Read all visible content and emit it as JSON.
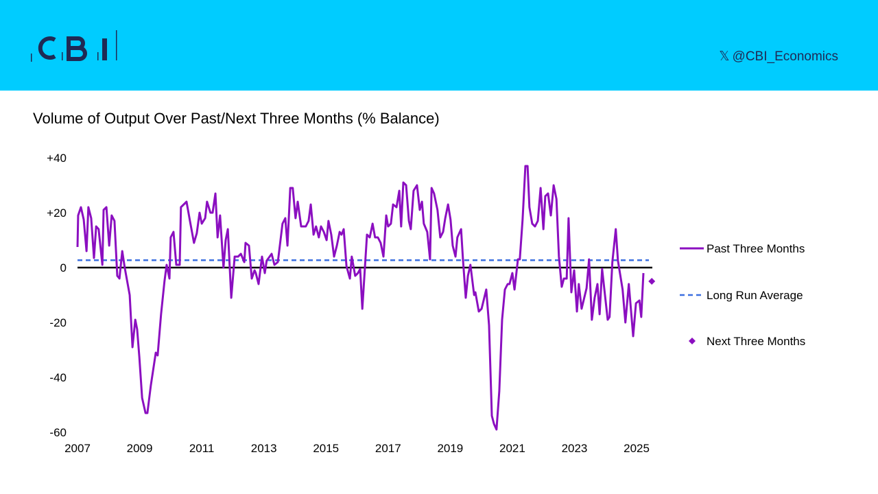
{
  "header": {
    "logo_text": "CBI",
    "handle": "@CBI_Economics",
    "handle_icon": "x-logo-icon",
    "background": "#00CCFF"
  },
  "chart_data": {
    "type": "line",
    "title": "Volume of Output Over Past/Next Three Months (% Balance)",
    "xlabel": "",
    "ylabel": "",
    "xlim": [
      2007,
      2025.6
    ],
    "ylim": [
      -60,
      40
    ],
    "x_ticks": [
      "2007",
      "2009",
      "2011",
      "2013",
      "2015",
      "2017",
      "2019",
      "2021",
      "2023",
      "2025"
    ],
    "y_ticks": [
      "+40",
      "+20",
      "0",
      "-20",
      "-40",
      "-60"
    ],
    "y_tick_values": [
      40,
      20,
      0,
      -20,
      -40,
      -60
    ],
    "grid": false,
    "legend_position": "right",
    "series": [
      {
        "name": "Past Three Months",
        "style": "line",
        "color": "#8B0FC0",
        "points": [
          [
            2007.0,
            7.5
          ],
          [
            2007.02,
            19
          ],
          [
            2007.11,
            22
          ],
          [
            2007.2,
            17.5
          ],
          [
            2007.29,
            6
          ],
          [
            2007.35,
            22
          ],
          [
            2007.44,
            18
          ],
          [
            2007.53,
            3.5
          ],
          [
            2007.6,
            15
          ],
          [
            2007.68,
            14
          ],
          [
            2007.8,
            1
          ],
          [
            2007.84,
            21
          ],
          [
            2007.93,
            22
          ],
          [
            2008.02,
            8
          ],
          [
            2008.1,
            19
          ],
          [
            2008.19,
            17
          ],
          [
            2008.28,
            -3
          ],
          [
            2008.35,
            -4
          ],
          [
            2008.44,
            6
          ],
          [
            2008.52,
            0
          ],
          [
            2008.68,
            -10
          ],
          [
            2008.77,
            -29
          ],
          [
            2008.86,
            -19
          ],
          [
            2008.92,
            -22.5
          ],
          [
            2008.99,
            -32.5
          ],
          [
            2009.08,
            -47.5
          ],
          [
            2009.19,
            -53
          ],
          [
            2009.25,
            -53
          ],
          [
            2009.36,
            -43
          ],
          [
            2009.52,
            -31
          ],
          [
            2009.58,
            -32
          ],
          [
            2009.69,
            -17
          ],
          [
            2009.8,
            -5
          ],
          [
            2009.87,
            1
          ],
          [
            2009.96,
            -4
          ],
          [
            2010.0,
            11
          ],
          [
            2010.09,
            13
          ],
          [
            2010.18,
            1
          ],
          [
            2010.29,
            1
          ],
          [
            2010.33,
            22
          ],
          [
            2010.51,
            24
          ],
          [
            2010.62,
            17
          ],
          [
            2010.75,
            9
          ],
          [
            2010.84,
            12.5
          ],
          [
            2010.93,
            20
          ],
          [
            2011.0,
            16
          ],
          [
            2011.11,
            18
          ],
          [
            2011.17,
            24
          ],
          [
            2011.28,
            20
          ],
          [
            2011.35,
            20
          ],
          [
            2011.44,
            27
          ],
          [
            2011.51,
            11
          ],
          [
            2011.59,
            19
          ],
          [
            2011.7,
            0
          ],
          [
            2011.77,
            10
          ],
          [
            2011.84,
            14
          ],
          [
            2011.95,
            -11
          ],
          [
            2012.06,
            4
          ],
          [
            2012.17,
            4
          ],
          [
            2012.26,
            5
          ],
          [
            2012.37,
            2
          ],
          [
            2012.41,
            9
          ],
          [
            2012.52,
            8
          ],
          [
            2012.61,
            -4
          ],
          [
            2012.7,
            -1
          ],
          [
            2012.74,
            -2
          ],
          [
            2012.83,
            -6
          ],
          [
            2012.94,
            4
          ],
          [
            2013.03,
            -2
          ],
          [
            2013.09,
            2.5
          ],
          [
            2013.25,
            5
          ],
          [
            2013.34,
            1
          ],
          [
            2013.45,
            2
          ],
          [
            2013.6,
            16
          ],
          [
            2013.69,
            18
          ],
          [
            2013.76,
            8
          ],
          [
            2013.85,
            29
          ],
          [
            2013.93,
            29
          ],
          [
            2014.02,
            18
          ],
          [
            2014.09,
            24
          ],
          [
            2014.2,
            15
          ],
          [
            2014.35,
            15
          ],
          [
            2014.44,
            17
          ],
          [
            2014.51,
            23
          ],
          [
            2014.6,
            12
          ],
          [
            2014.68,
            15
          ],
          [
            2014.77,
            11
          ],
          [
            2014.84,
            15
          ],
          [
            2014.93,
            13
          ],
          [
            2015.02,
            10
          ],
          [
            2015.08,
            17
          ],
          [
            2015.17,
            12
          ],
          [
            2015.26,
            4
          ],
          [
            2015.35,
            8
          ],
          [
            2015.44,
            13
          ],
          [
            2015.5,
            12
          ],
          [
            2015.57,
            14
          ],
          [
            2015.66,
            0.5
          ],
          [
            2015.77,
            -4
          ],
          [
            2015.83,
            4
          ],
          [
            2015.94,
            -3
          ],
          [
            2016.03,
            -2
          ],
          [
            2016.1,
            -0.5
          ],
          [
            2016.17,
            -15
          ],
          [
            2016.32,
            12
          ],
          [
            2016.41,
            11
          ],
          [
            2016.5,
            16
          ],
          [
            2016.58,
            11
          ],
          [
            2016.67,
            11
          ],
          [
            2016.76,
            9
          ],
          [
            2016.85,
            4
          ],
          [
            2016.94,
            19
          ],
          [
            2017.0,
            15
          ],
          [
            2017.09,
            16
          ],
          [
            2017.16,
            23
          ],
          [
            2017.27,
            22
          ],
          [
            2017.36,
            28
          ],
          [
            2017.42,
            15
          ],
          [
            2017.49,
            31
          ],
          [
            2017.58,
            30
          ],
          [
            2017.67,
            17
          ],
          [
            2017.73,
            14
          ],
          [
            2017.82,
            28
          ],
          [
            2017.93,
            30
          ],
          [
            2018.02,
            21
          ],
          [
            2018.09,
            24
          ],
          [
            2018.15,
            16
          ],
          [
            2018.26,
            13
          ],
          [
            2018.35,
            3
          ],
          [
            2018.4,
            29
          ],
          [
            2018.48,
            27
          ],
          [
            2018.59,
            21
          ],
          [
            2018.68,
            11
          ],
          [
            2018.77,
            13
          ],
          [
            2018.84,
            18
          ],
          [
            2018.93,
            23
          ],
          [
            2019.01,
            17.5
          ],
          [
            2019.08,
            8
          ],
          [
            2019.17,
            4
          ],
          [
            2019.23,
            11
          ],
          [
            2019.35,
            14
          ],
          [
            2019.41,
            3
          ],
          [
            2019.5,
            -11
          ],
          [
            2019.57,
            -3
          ],
          [
            2019.65,
            1
          ],
          [
            2019.77,
            -10
          ],
          [
            2019.81,
            -9
          ],
          [
            2019.92,
            -16
          ],
          [
            2020.01,
            -15
          ],
          [
            2020.16,
            -8
          ],
          [
            2020.25,
            -21
          ],
          [
            2020.34,
            -54
          ],
          [
            2020.41,
            -57
          ],
          [
            2020.49,
            -59
          ],
          [
            2020.58,
            -45
          ],
          [
            2020.67,
            -19
          ],
          [
            2020.76,
            -8
          ],
          [
            2020.85,
            -6
          ],
          [
            2020.91,
            -6
          ],
          [
            2021.0,
            -2
          ],
          [
            2021.07,
            -8
          ],
          [
            2021.18,
            3
          ],
          [
            2021.24,
            3
          ],
          [
            2021.33,
            17.5
          ],
          [
            2021.42,
            37
          ],
          [
            2021.49,
            37
          ],
          [
            2021.55,
            22
          ],
          [
            2021.64,
            16
          ],
          [
            2021.73,
            15
          ],
          [
            2021.82,
            17
          ],
          [
            2021.91,
            29
          ],
          [
            2022.0,
            14
          ],
          [
            2022.06,
            26
          ],
          [
            2022.15,
            27
          ],
          [
            2022.24,
            19
          ],
          [
            2022.33,
            30
          ],
          [
            2022.42,
            25
          ],
          [
            2022.5,
            4
          ],
          [
            2022.59,
            -7
          ],
          [
            2022.66,
            -4
          ],
          [
            2022.75,
            -4
          ],
          [
            2022.81,
            18
          ],
          [
            2022.9,
            -9
          ],
          [
            2022.99,
            -1
          ],
          [
            2023.08,
            -16
          ],
          [
            2023.14,
            -6
          ],
          [
            2023.23,
            -15
          ],
          [
            2023.39,
            -7.5
          ],
          [
            2023.47,
            3
          ],
          [
            2023.56,
            -19
          ],
          [
            2023.65,
            -11
          ],
          [
            2023.74,
            -6
          ],
          [
            2023.81,
            -17
          ],
          [
            2023.89,
            -0.5
          ],
          [
            2024.07,
            -19
          ],
          [
            2024.13,
            -18
          ],
          [
            2024.22,
            2
          ],
          [
            2024.33,
            14
          ],
          [
            2024.4,
            2.5
          ],
          [
            2024.55,
            -8
          ],
          [
            2024.64,
            -20
          ],
          [
            2024.75,
            -6
          ],
          [
            2024.89,
            -25
          ],
          [
            2024.98,
            -13
          ],
          [
            2025.09,
            -12
          ],
          [
            2025.15,
            -18
          ],
          [
            2025.22,
            -2
          ]
        ]
      },
      {
        "name": "Long Run Average",
        "style": "dashed",
        "color": "#3B6FE0",
        "value": 2.7
      },
      {
        "name": "Next Three Months",
        "style": "marker",
        "color": "#8B0FC0",
        "points": [
          [
            2025.49,
            -5
          ]
        ]
      }
    ]
  }
}
